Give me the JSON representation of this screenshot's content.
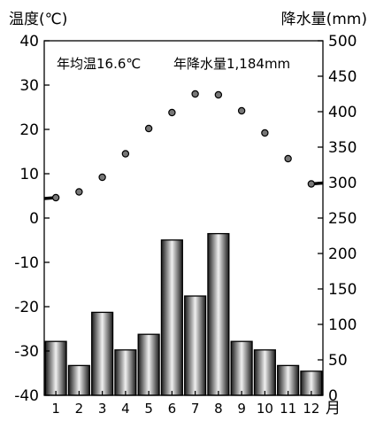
{
  "chart_data": {
    "type": "bar+line",
    "title": "",
    "annotations": [
      "年均温16.6℃",
      "年降水量1,184mm"
    ],
    "x_label_suffix": "月",
    "categories": [
      "1",
      "2",
      "3",
      "4",
      "5",
      "6",
      "7",
      "8",
      "9",
      "10",
      "11",
      "12"
    ],
    "y_left": {
      "label": "温度(℃)",
      "range": [
        -40,
        40
      ],
      "ticks": [
        "40",
        "30",
        "20",
        "10",
        "0",
        "-10",
        "-20",
        "-30",
        "-40"
      ]
    },
    "y_right": {
      "label": "降水量(mm)",
      "range": [
        0,
        500
      ],
      "ticks": [
        "500",
        "450",
        "400",
        "350",
        "300",
        "250",
        "200",
        "150",
        "100",
        "50",
        "0"
      ]
    },
    "series": [
      {
        "kind": "bar",
        "axis": "right",
        "values": [
          76,
          42,
          117,
          64,
          86,
          219,
          140,
          228,
          76,
          64,
          42,
          34
        ]
      },
      {
        "kind": "line",
        "axis": "left",
        "values": [
          4.6,
          5.9,
          9.2,
          14.5,
          20.2,
          23.8,
          28.0,
          27.8,
          24.2,
          19.2,
          13.4,
          7.7
        ]
      }
    ],
    "colors": {
      "bar_dark": "#1a1a1a",
      "bar_light": "#f0f0f0",
      "line": "#000000",
      "marker": "#777777"
    }
  }
}
